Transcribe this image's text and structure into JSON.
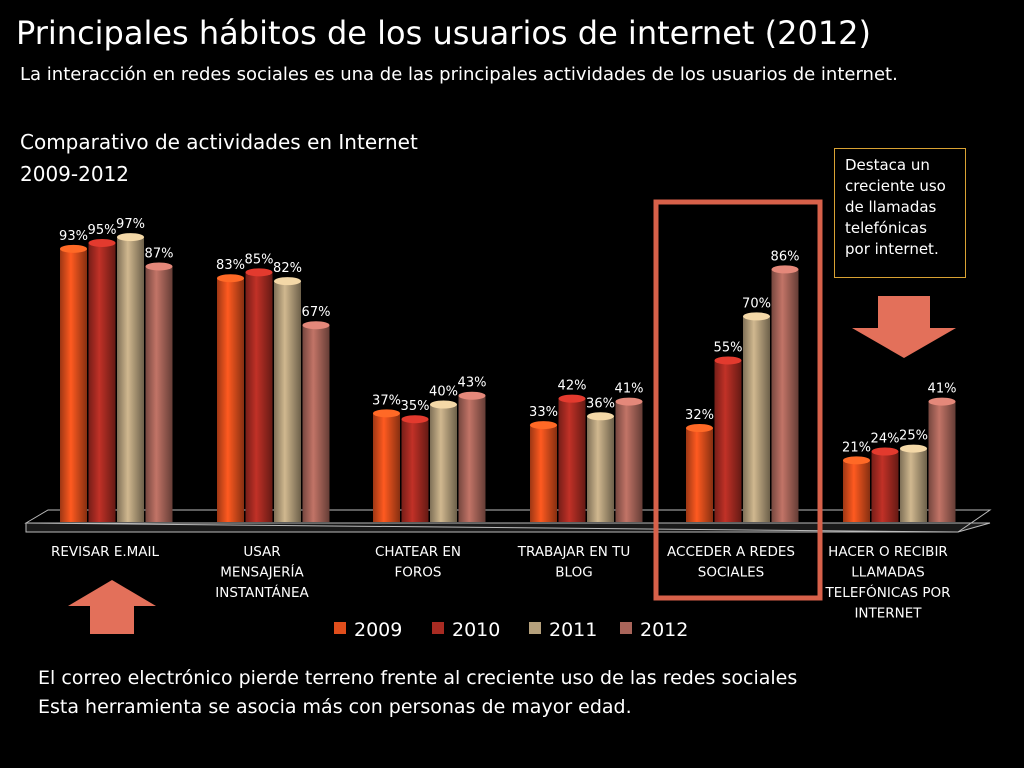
{
  "title": "Principales hábitos de los usuarios de internet (2012)",
  "subtitle": "La interacción en redes sociales es una de las principales actividades de los usuarios de internet.",
  "chart_heading": [
    "Comparativo de actividades en Internet",
    "2009-2012"
  ],
  "callout": [
    "Destaca un",
    "creciente uso",
    "de llamadas",
    "telefónicas",
    "por internet."
  ],
  "footer": [
    "El correo electrónico pierde terreno frente al creciente uso de las redes sociales",
    "Esta herramienta se asocia más con personas de mayor edad."
  ],
  "colors": {
    "s2009": "#e04e1c",
    "s2010": "#a82b22",
    "s2011": "#b5a07c",
    "s2012": "#a9655a",
    "highlight": "#d7614a",
    "arrow": "#e3705a",
    "callout_border": "#d9a233"
  },
  "chart_data": {
    "type": "bar",
    "categories": [
      [
        "REVISAR E.MAIL"
      ],
      [
        "USAR",
        "MENSAJERÍA",
        "INSTANTÁNEA"
      ],
      [
        "CHATEAR EN",
        "FOROS"
      ],
      [
        "TRABAJAR EN TU",
        "BLOG"
      ],
      [
        "ACCEDER A REDES",
        "SOCIALES"
      ],
      [
        "HACER O RECIBIR",
        "LLAMADAS",
        "TELEFÓNICAS POR",
        "INTERNET"
      ]
    ],
    "series": [
      {
        "name": "2009",
        "values": [
          93,
          83,
          37,
          33,
          32,
          21
        ],
        "labels": [
          "93%",
          "83%",
          "37%",
          "33%",
          "32%",
          "21%"
        ]
      },
      {
        "name": "2010",
        "values": [
          95,
          85,
          35,
          42,
          55,
          24
        ],
        "labels": [
          "95%",
          "85%",
          "35%",
          "42%",
          "55%",
          "24%"
        ]
      },
      {
        "name": "2011",
        "values": [
          97,
          82,
          40,
          36,
          70,
          25
        ],
        "labels": [
          "97%",
          "82%",
          "40%",
          "36%",
          "70%",
          "25%"
        ]
      },
      {
        "name": "2012",
        "values": [
          87,
          67,
          43,
          41,
          86,
          41
        ],
        "labels": [
          "87%",
          "67%",
          "43%",
          "41%",
          "86%",
          "41%"
        ]
      }
    ],
    "ylim": [
      0,
      100
    ],
    "grid": false,
    "legend": "bottom",
    "highlighted_category": "ACCEDER A REDES SOCIALES"
  }
}
